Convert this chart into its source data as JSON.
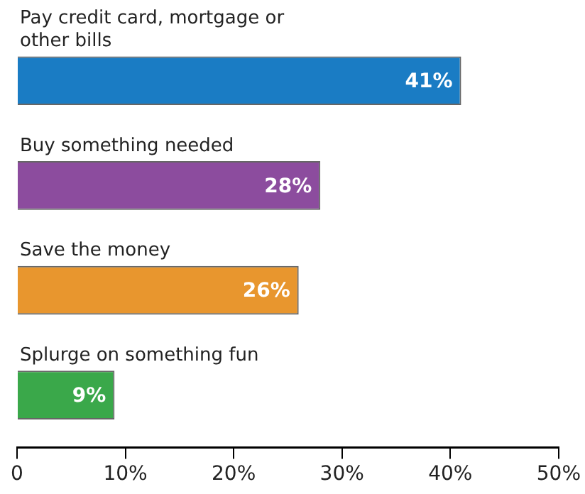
{
  "chart_data": {
    "type": "bar",
    "orientation": "horizontal",
    "categories": [
      "Pay credit card, mortgage or other bills",
      "Buy something needed",
      "Save the money",
      "Splurge on something fun"
    ],
    "values": [
      41,
      28,
      26,
      9
    ],
    "colors": [
      "#1a7cc4",
      "#8c4c9e",
      "#e8962e",
      "#3aa84a"
    ],
    "value_labels": [
      "41%",
      "28%",
      "26%",
      "9%"
    ],
    "xlim": [
      0,
      50
    ],
    "xticks": [
      0,
      {
        "value": 10,
        "label": "10%"
      },
      {
        "value": 20,
        "label": "20%"
      },
      {
        "value": 30,
        "label": "30%"
      },
      {
        "value": 40,
        "label": "40%"
      },
      {
        "value": 50,
        "label": "50%"
      }
    ],
    "grid": false
  }
}
